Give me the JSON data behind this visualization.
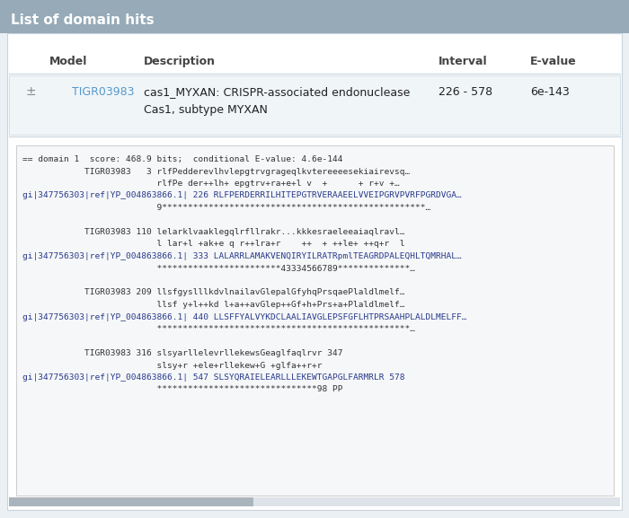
{
  "title": "List of domain hits",
  "title_bg": "#96aab8",
  "title_fg": "#ffffff",
  "outer_bg": "#eaf0f4",
  "card_bg": "#ffffff",
  "card_border": "#c8d4dc",
  "align_box_bg": "#f5f7f8",
  "align_box_border": "#cccccc",
  "row_bg": "#f0f5f8",
  "table_header": [
    "Model",
    "Description",
    "Interval",
    "E-value"
  ],
  "table_row": {
    "plus_sign": "±",
    "model": "TIGR03983",
    "model_color": "#5599cc",
    "description_line1": "cas1_MYXAN: CRISPR-associated endonuclease",
    "description_line2": "Cas1, subtype MYXAN",
    "interval": "226 - 578",
    "evalue": "6e-143"
  },
  "alignment_lines": [
    [
      "== domain 1  score: 468.9 bits;  conditional E-value: 4.6e-144",
      "normal"
    ],
    [
      "            TIGR03983   3 rlfPedderevlhvlepgtrvgrageqlkvtereeeesekiairevsq…",
      "normal"
    ],
    [
      "                          rlfPe der++lh+ epgtrv+ra+e+l v  +      + r+v +…",
      "normal"
    ],
    [
      "gi|347756303|ref|YP_004863866.1| 226 RLFPERDERRILHITEPGTRVERAAEELVVEIPGRVPVRFPGRDVGA…",
      "gi"
    ],
    [
      "                          9***************************************************…",
      "normal"
    ],
    [
      "",
      "normal"
    ],
    [
      "            TIGR03983 110 lelarklvaaklegqlrfllrakr...kkkesraeleeaiaqlravl…",
      "normal"
    ],
    [
      "                          l lar+l +ak+e q r++lra+r    ++  + ++le+ ++q+r  l",
      "normal"
    ],
    [
      "gi|347756303|ref|YP_004863866.1| 333 LALARRLAMAKVENQIRYILRATRpmlTEAGRDPALEQHLTQMRHAL…",
      "gi"
    ],
    [
      "                          ************************43334566789**************…",
      "normal"
    ],
    [
      "",
      "normal"
    ],
    [
      "            TIGR03983 209 llsfgyslllkdvlnailavGlepalGfyhqPrsqaePlaldlmelf…",
      "normal"
    ],
    [
      "                          llsf y+l++kd l+a++avGlep++Gf+h+Prs+a+Plaldlmelf…",
      "normal"
    ],
    [
      "gi|347756303|ref|YP_004863866.1| 440 LLSFFYALVYKDCLAALIAVGLEPSFGFLHTPRSAAHPLALDLMELFF…",
      "gi"
    ],
    [
      "                          *************************************************…",
      "normal"
    ],
    [
      "",
      "normal"
    ],
    [
      "            TIGR03983 316 slsyarllelevrllekewsGeaglfaqlrvr 347",
      "normal"
    ],
    [
      "                          slsy+r +ele+rllekew+G +glfa++r+r",
      "normal"
    ],
    [
      "gi|347756303|ref|YP_004863866.1| 547 SLSYQRAIELEARLLLEKEWTGAPGLFARMRLR 578",
      "gi"
    ],
    [
      "                          *******************************98 PP",
      "normal"
    ]
  ],
  "scrollbar_bg": "#dde3e8",
  "scrollbar_thumb": "#aab4bc",
  "figw": 7.0,
  "figh": 5.77,
  "dpi": 100
}
